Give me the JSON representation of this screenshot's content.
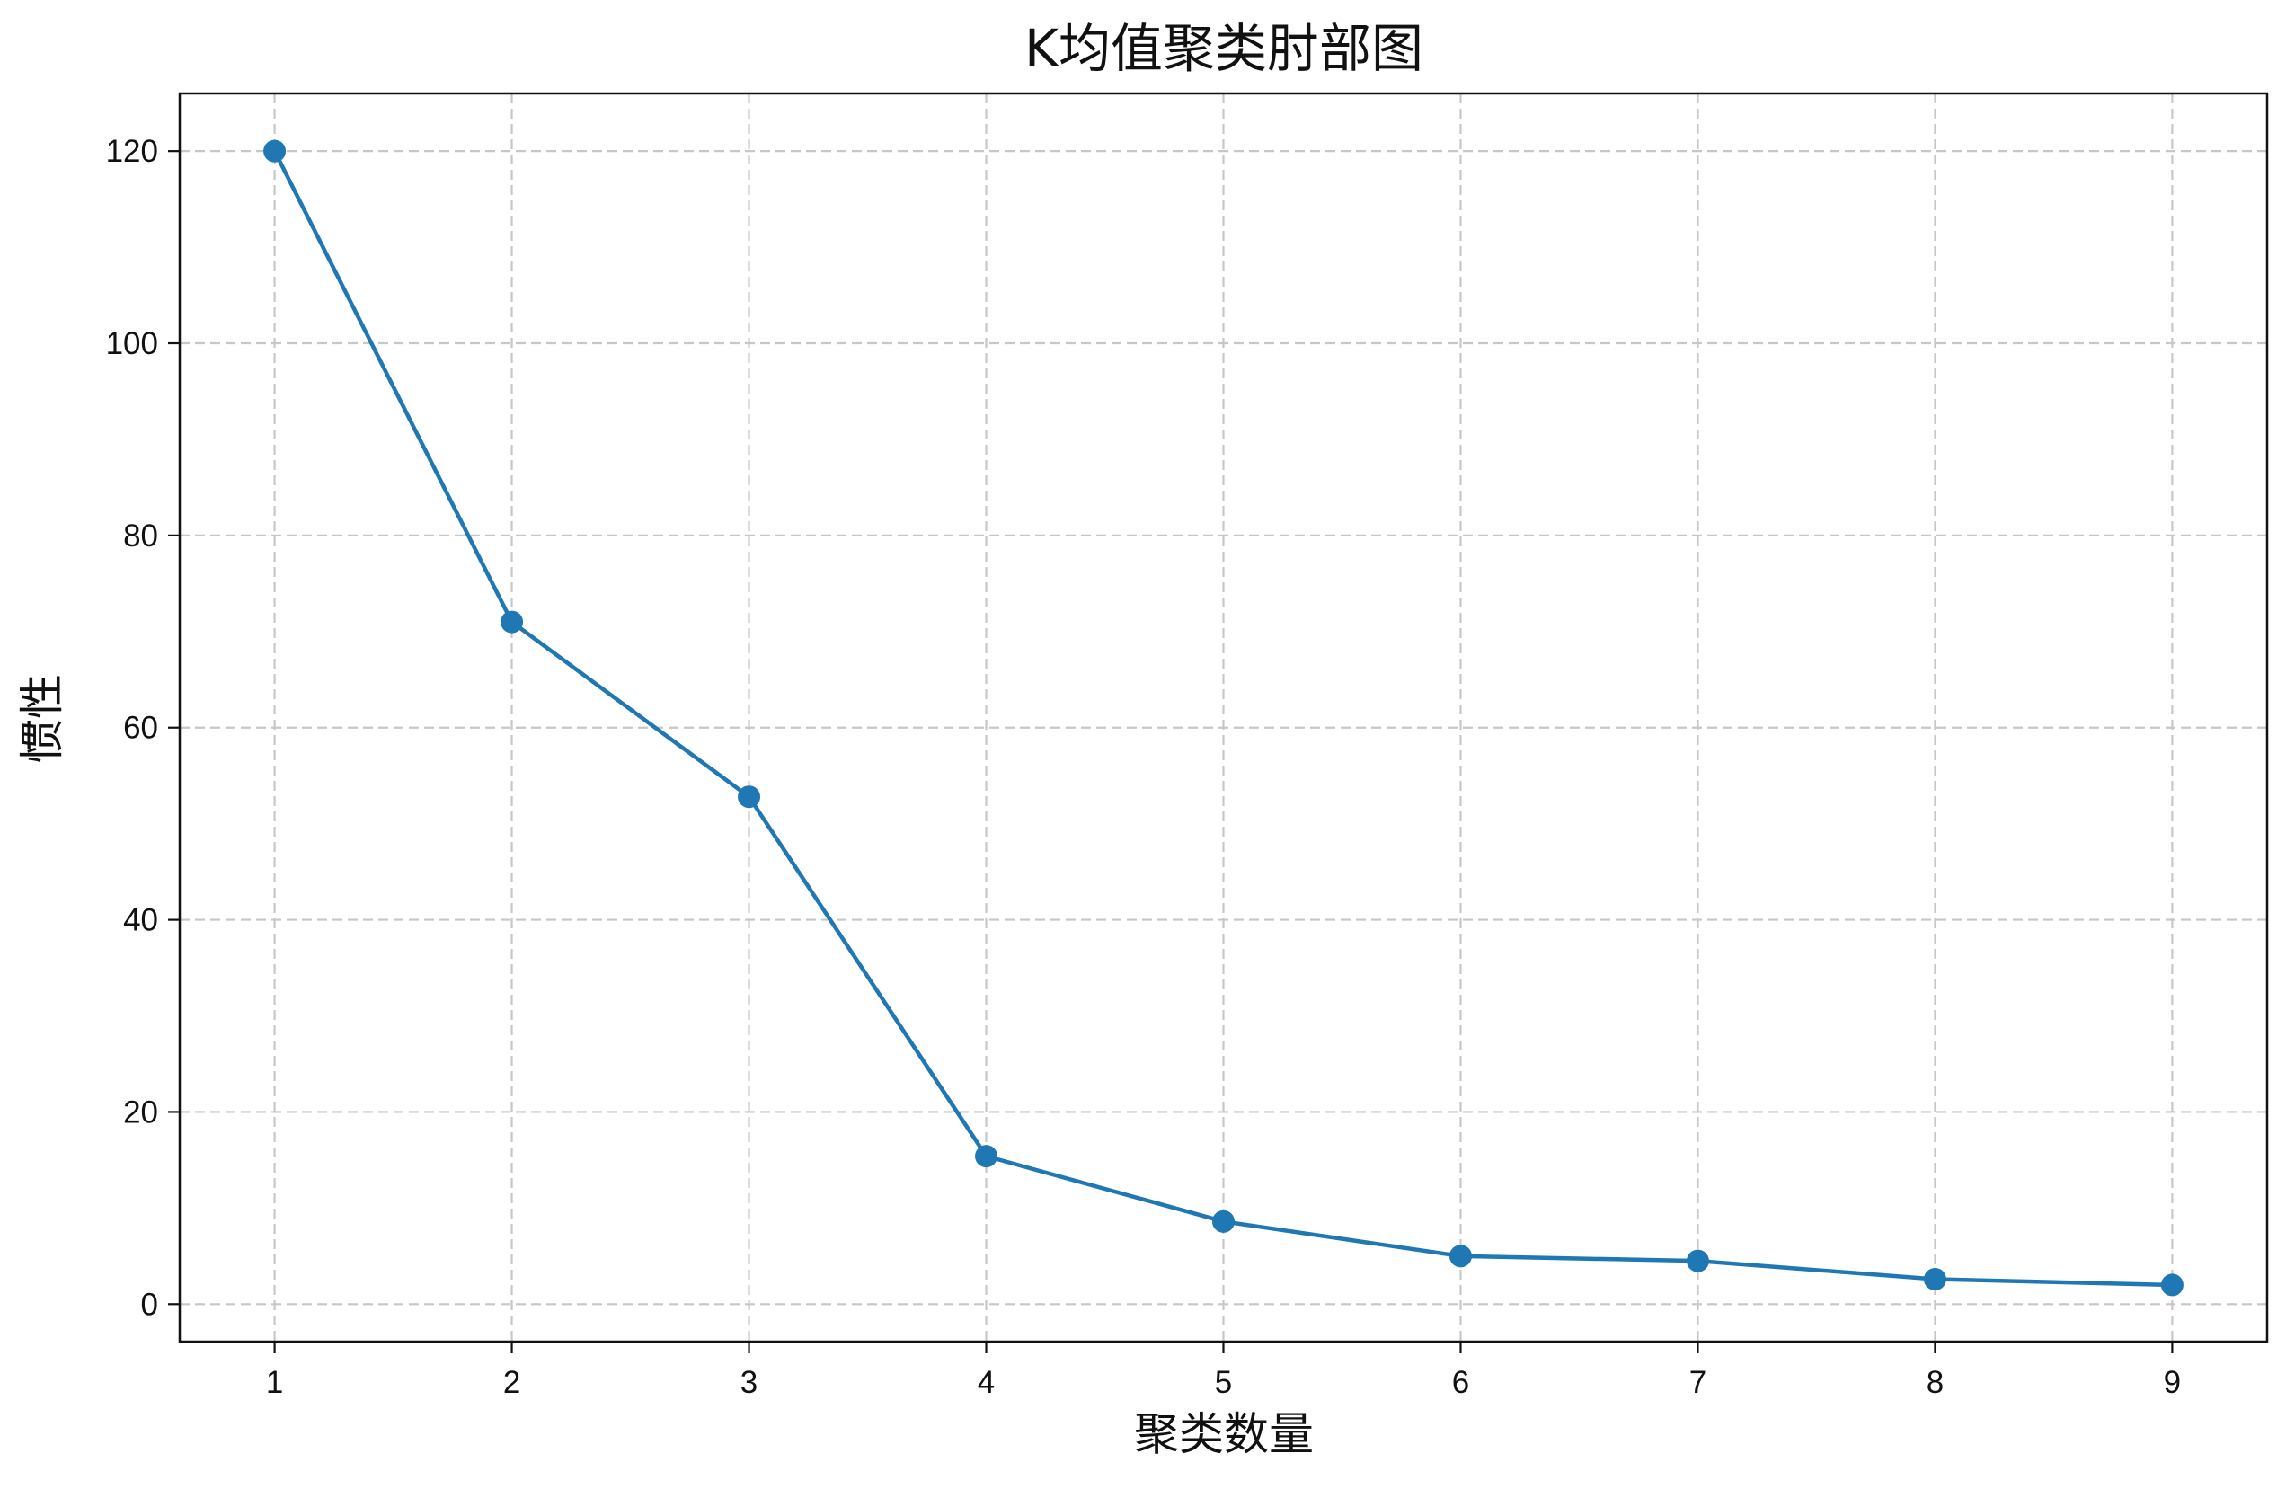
{
  "chart_data": {
    "type": "line",
    "title": "K均值聚类肘部图",
    "xlabel": "聚类数量",
    "ylabel": "惯性",
    "x": [
      1,
      2,
      3,
      4,
      5,
      6,
      7,
      8,
      9
    ],
    "series": [
      {
        "values": [
          120.0,
          71.0,
          52.8,
          15.4,
          8.6,
          5.0,
          4.5,
          2.6,
          2.0
        ],
        "color": "#1f77b4",
        "marker": "circle"
      }
    ],
    "x_ticks": [
      "1",
      "2",
      "3",
      "4",
      "5",
      "6",
      "7",
      "8",
      "9"
    ],
    "y_ticks": [
      "0",
      "20",
      "40",
      "60",
      "80",
      "100",
      "120"
    ],
    "xlim": [
      0.6,
      9.4
    ],
    "ylim": [
      -3.9,
      126.0
    ],
    "grid": true,
    "grid_style": "dashed",
    "legend": "none"
  }
}
